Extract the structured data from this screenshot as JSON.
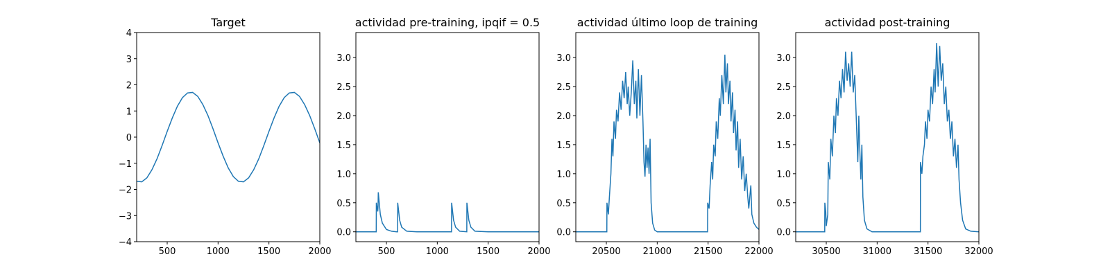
{
  "chart_data": [
    {
      "type": "line",
      "title": "Target",
      "color": "#1f77b4",
      "x": [
        200,
        250,
        300,
        350,
        400,
        450,
        500,
        550,
        600,
        650,
        700,
        750,
        800,
        850,
        900,
        950,
        1000,
        1050,
        1100,
        1150,
        1200,
        1250,
        1300,
        1350,
        1400,
        1450,
        1500,
        1550,
        1600,
        1650,
        1700,
        1750,
        1800,
        1850,
        1900,
        1950,
        2000
      ],
      "values": [
        -1.69,
        -1.71,
        -1.56,
        -1.25,
        -0.83,
        -0.32,
        0.22,
        0.73,
        1.18,
        1.51,
        1.69,
        1.71,
        1.56,
        1.25,
        0.83,
        0.32,
        -0.22,
        -0.73,
        -1.18,
        -1.51,
        -1.69,
        -1.71,
        -1.56,
        -1.25,
        -0.83,
        -0.32,
        0.22,
        0.73,
        1.18,
        1.51,
        1.69,
        1.71,
        1.56,
        1.25,
        0.83,
        0.32,
        -0.22
      ],
      "xlim": [
        200,
        2000
      ],
      "xticks": [
        500,
        1000,
        1500,
        2000
      ],
      "ylim": [
        -4,
        4
      ],
      "yticks": [
        {
          "value": -4,
          "label": "−4"
        },
        {
          "value": -3,
          "label": "−3"
        },
        {
          "value": -2,
          "label": "−2"
        },
        {
          "value": -1,
          "label": "−1"
        },
        0,
        1,
        2,
        3,
        4
      ]
    },
    {
      "type": "line",
      "title": "actividad pre-training, ipqif = 0.5",
      "color": "#1f77b4",
      "x": [
        200,
        400,
        401,
        415,
        418,
        420,
        440,
        460,
        500,
        550,
        600,
        610,
        611,
        630,
        650,
        700,
        800,
        1000,
        1140,
        1141,
        1160,
        1180,
        1220,
        1290,
        1291,
        1310,
        1330,
        1370,
        1500,
        2000
      ],
      "values": [
        0,
        0,
        0.5,
        0.35,
        0.45,
        0.68,
        0.3,
        0.15,
        0.04,
        0.01,
        0,
        0,
        0.5,
        0.2,
        0.08,
        0.01,
        0,
        0,
        0,
        0.5,
        0.2,
        0.08,
        0.01,
        0,
        0.5,
        0.2,
        0.08,
        0.01,
        0,
        0
      ],
      "xlim": [
        200,
        2000
      ],
      "xticks": [
        500,
        1000,
        1500,
        2000
      ],
      "ylim": [
        -0.17,
        3.43
      ],
      "yticks": [
        {
          "value": 0,
          "label": "0.0"
        },
        0.5,
        {
          "value": 1,
          "label": "1.0"
        },
        1.5,
        {
          "value": 2,
          "label": "2.0"
        },
        2.5,
        {
          "value": 3,
          "label": "3.0"
        }
      ]
    },
    {
      "type": "line",
      "title": "actividad último loop de training",
      "color": "#1f77b4",
      "x": [
        20200,
        20505,
        20506,
        20520,
        20530,
        20545,
        20555,
        20565,
        20575,
        20590,
        20600,
        20615,
        20630,
        20645,
        20660,
        20675,
        20690,
        20705,
        20715,
        20730,
        20745,
        20760,
        20775,
        20790,
        20800,
        20815,
        20830,
        20845,
        20860,
        20870,
        20880,
        20890,
        20900,
        20910,
        20920,
        20930,
        20940,
        20955,
        20975,
        21000,
        21495,
        21496,
        21510,
        21520,
        21535,
        21545,
        21555,
        21570,
        21580,
        21595,
        21610,
        21620,
        21635,
        21650,
        21665,
        21675,
        21690,
        21700,
        21715,
        21725,
        21740,
        21750,
        21765,
        21775,
        21790,
        21800,
        21815,
        21830,
        21845,
        21860,
        21875,
        21890,
        21900,
        21920,
        21930,
        21950,
        21975,
        22000
      ],
      "values": [
        0,
        0,
        0.5,
        0.3,
        0.6,
        1.0,
        1.6,
        1.3,
        1.9,
        1.6,
        2.1,
        1.9,
        2.4,
        2.1,
        2.6,
        2.3,
        2.75,
        2.2,
        2.5,
        2.0,
        2.4,
        2.95,
        2.2,
        2.6,
        1.95,
        2.8,
        2.0,
        2.7,
        1.9,
        1.2,
        0.95,
        1.5,
        1.1,
        1.45,
        1.0,
        1.6,
        0.5,
        0.15,
        0.03,
        0,
        0,
        0.5,
        0.4,
        0.8,
        1.2,
        0.9,
        1.5,
        1.3,
        1.9,
        1.6,
        2.3,
        2.0,
        2.7,
        2.2,
        3.05,
        2.4,
        2.9,
        2.2,
        2.6,
        1.9,
        2.4,
        1.7,
        2.1,
        1.4,
        1.9,
        1.1,
        1.6,
        0.9,
        1.3,
        0.7,
        1.0,
        0.6,
        0.4,
        0.8,
        0.3,
        0.15,
        0.08,
        0.04
      ],
      "xlim": [
        20200,
        22000
      ],
      "xticks": [
        20500,
        21000,
        21500,
        22000
      ],
      "ylim": [
        -0.17,
        3.43
      ],
      "yticks": [
        {
          "value": 0,
          "label": "0.0"
        },
        0.5,
        {
          "value": 1,
          "label": "1.0"
        },
        1.5,
        {
          "value": 2,
          "label": "2.0"
        },
        2.5,
        {
          "value": 3,
          "label": "3.0"
        }
      ]
    },
    {
      "type": "line",
      "title": "actividad post-training",
      "color": "#1f77b4",
      "x": [
        30200,
        30485,
        30486,
        30495,
        30500,
        30515,
        30520,
        30535,
        30545,
        30560,
        30575,
        30590,
        30600,
        30615,
        30630,
        30645,
        30660,
        30675,
        30690,
        30705,
        30720,
        30735,
        30750,
        30765,
        30780,
        30790,
        30800,
        30810,
        30820,
        30830,
        30840,
        30850,
        30860,
        30875,
        30900,
        30950,
        31425,
        31426,
        31440,
        31450,
        31465,
        31475,
        31490,
        31500,
        31515,
        31530,
        31545,
        31560,
        31570,
        31585,
        31600,
        31615,
        31630,
        31645,
        31660,
        31675,
        31690,
        31705,
        31720,
        31735,
        31750,
        31765,
        31780,
        31795,
        31805,
        31820,
        31840,
        31870,
        31920,
        32000
      ],
      "values": [
        0,
        0,
        0.5,
        0.35,
        0.1,
        0.3,
        1.2,
        0.9,
        1.6,
        1.3,
        2.0,
        1.7,
        2.3,
        2.0,
        2.6,
        2.3,
        2.8,
        2.4,
        3.1,
        2.6,
        2.9,
        2.5,
        3.1,
        2.4,
        2.7,
        2.2,
        1.7,
        1.2,
        2.0,
        1.4,
        0.9,
        1.5,
        0.6,
        0.2,
        0.05,
        0,
        0,
        1.2,
        1.0,
        1.3,
        1.5,
        1.9,
        1.6,
        2.1,
        1.9,
        2.5,
        2.2,
        2.8,
        2.4,
        3.25,
        2.5,
        3.2,
        2.6,
        2.9,
        2.2,
        2.5,
        1.9,
        2.1,
        1.6,
        1.9,
        1.3,
        1.6,
        1.1,
        1.5,
        0.9,
        0.5,
        0.2,
        0.05,
        0.01,
        0
      ],
      "xlim": [
        30200,
        32000
      ],
      "xticks": [
        30500,
        31000,
        31500,
        32000
      ],
      "ylim": [
        -0.17,
        3.43
      ],
      "yticks": [
        {
          "value": 0,
          "label": "0.0"
        },
        0.5,
        {
          "value": 1,
          "label": "1.0"
        },
        1.5,
        {
          "value": 2,
          "label": "2.0"
        },
        2.5,
        {
          "value": 3,
          "label": "3.0"
        }
      ]
    }
  ]
}
